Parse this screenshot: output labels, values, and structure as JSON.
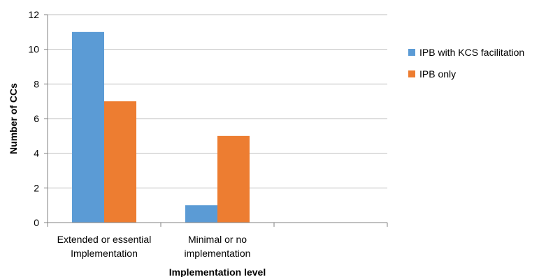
{
  "chart_data": {
    "type": "bar",
    "categories": [
      [
        "Extended or essential",
        "Implementation"
      ],
      [
        "Minimal or no",
        "implementation"
      ],
      ""
    ],
    "series": [
      {
        "name": "IPB with KCS facilitation",
        "values": [
          11,
          1,
          null
        ],
        "color": "#5B9BD5"
      },
      {
        "name": "IPB only",
        "values": [
          7,
          5,
          null
        ],
        "color": "#ED7D31"
      }
    ],
    "xlabel": "Implementation level",
    "ylabel": "Number of CCs",
    "ylim": [
      0,
      12
    ],
    "yticks": [
      0,
      2,
      4,
      6,
      8,
      10,
      12
    ],
    "grid": true,
    "legend_position": "right"
  }
}
